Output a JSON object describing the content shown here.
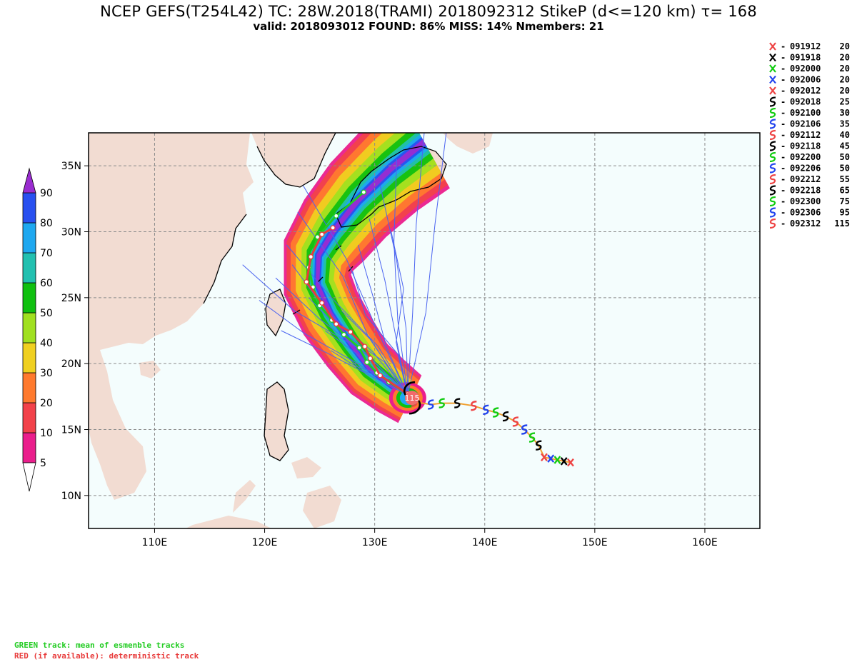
{
  "title": {
    "line1": "NCEP GEFS(T254L42) TC: 28W.2018(TRAMI) 2018092312 StikeP (d<=120 km)  τ= 168",
    "line2": "valid: 2018093012   FOUND: 86%   MISS: 14%      Nmembers: 21"
  },
  "colors": {
    "land": "#f2dcd2",
    "ocean": "#f4fdfd",
    "coast": "#000000",
    "member_track": "#4a63f0",
    "mean_track": "#22cc22",
    "det_track": "#e83c3c",
    "obs_track": "#f0a030"
  },
  "axes": {
    "lon_ticks": [
      110,
      120,
      130,
      140,
      150,
      160
    ],
    "lon_labels": [
      "110E",
      "120E",
      "130E",
      "140E",
      "150E",
      "160E"
    ],
    "lat_ticks": [
      10,
      15,
      20,
      25,
      30,
      35
    ],
    "lat_labels": [
      "10N",
      "15N",
      "20N",
      "25N",
      "30N",
      "35N"
    ],
    "lon_range": [
      104,
      165
    ],
    "lat_range": [
      7.5,
      37.5
    ],
    "grid": true
  },
  "colorbar": {
    "levels": [
      5,
      10,
      20,
      30,
      40,
      50,
      60,
      70,
      80,
      90
    ],
    "colors": [
      "#ea1e8c",
      "#f2424a",
      "#ff7a2e",
      "#f0d020",
      "#a0e020",
      "#10c010",
      "#22c0b0",
      "#1ea8f0",
      "#2850f0",
      "#9a2cd0"
    ]
  },
  "legend": [
    {
      "time": "091912",
      "intensity": "20",
      "symbol": "X",
      "color": "#ee4444"
    },
    {
      "time": "091918",
      "intensity": "20",
      "symbol": "X",
      "color": "#000000"
    },
    {
      "time": "092000",
      "intensity": "20",
      "symbol": "X",
      "color": "#11cc11"
    },
    {
      "time": "092006",
      "intensity": "20",
      "symbol": "X",
      "color": "#2244ee"
    },
    {
      "time": "092012",
      "intensity": "20",
      "symbol": "X",
      "color": "#ee4444"
    },
    {
      "time": "092018",
      "intensity": "25",
      "symbol": "S",
      "color": "#000000"
    },
    {
      "time": "092100",
      "intensity": "30",
      "symbol": "S",
      "color": "#11cc11"
    },
    {
      "time": "092106",
      "intensity": "35",
      "symbol": "S",
      "color": "#2244ee"
    },
    {
      "time": "092112",
      "intensity": "40",
      "symbol": "S",
      "color": "#ee4444"
    },
    {
      "time": "092118",
      "intensity": "45",
      "symbol": "S",
      "color": "#000000"
    },
    {
      "time": "092200",
      "intensity": "50",
      "symbol": "S",
      "color": "#11cc11"
    },
    {
      "time": "092206",
      "intensity": "50",
      "symbol": "S",
      "color": "#2244ee"
    },
    {
      "time": "092212",
      "intensity": "55",
      "symbol": "S",
      "color": "#ee4444"
    },
    {
      "time": "092218",
      "intensity": "65",
      "symbol": "S",
      "color": "#000000"
    },
    {
      "time": "092300",
      "intensity": "75",
      "symbol": "S",
      "color": "#11cc11"
    },
    {
      "time": "092306",
      "intensity": "95",
      "symbol": "S",
      "color": "#2244ee"
    },
    {
      "time": "092312",
      "intensity": "115",
      "symbol": "S",
      "color": "#ee4444"
    }
  ],
  "obs_track": [
    [
      147.8,
      12.5
    ],
    [
      147.2,
      12.6
    ],
    [
      146.6,
      12.7
    ],
    [
      146.0,
      12.8
    ],
    [
      145.4,
      12.9
    ],
    [
      144.9,
      13.8
    ],
    [
      144.3,
      14.4
    ],
    [
      143.6,
      15.0
    ],
    [
      142.8,
      15.6
    ],
    [
      141.9,
      16.0
    ],
    [
      141.0,
      16.3
    ],
    [
      140.1,
      16.5
    ],
    [
      139.0,
      16.8
    ],
    [
      137.5,
      17.0
    ],
    [
      136.1,
      17.0
    ],
    [
      135.1,
      16.9
    ],
    [
      133.6,
      17.1
    ]
  ],
  "current_intensity_label": "115",
  "current_position": [
    133.4,
    17.4
  ],
  "notes": {
    "green": "GREEN track: mean of esmenble tracks",
    "red": "RED (if available): deterministic track"
  }
}
